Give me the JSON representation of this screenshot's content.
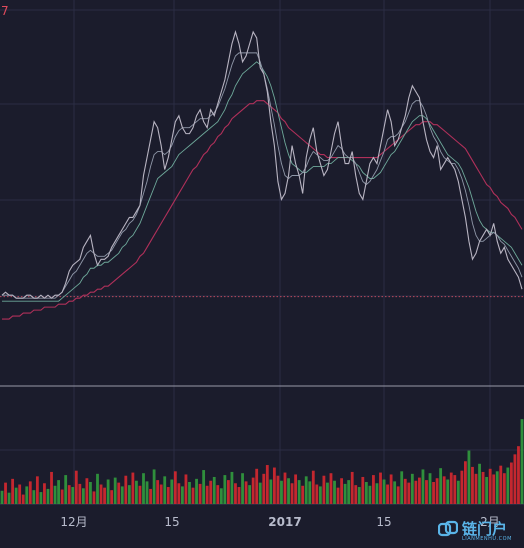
{
  "corner_label": "7",
  "watermark": {
    "cn": "链门户",
    "en": "LIANMENHU.COM"
  },
  "colors": {
    "background": "#1b1c2c",
    "grid": "#2b2d44",
    "price_line": "#b8b4c2",
    "ma_short": "#8f97a8",
    "ma_mid": "#6ea89a",
    "ma_long": "#b0305a",
    "reference_line": "#b8485a",
    "volume_up": "#2f8f3c",
    "volume_down": "#c4272f",
    "axis_text": "#b8bccc",
    "separator": "#9a9aa8"
  },
  "chart_data": {
    "type": "line",
    "title": "",
    "x_ticks": [
      "12月",
      "15",
      "2017",
      "15",
      "2月"
    ],
    "price": [
      74,
      75,
      74,
      74,
      73,
      73,
      73,
      74,
      74,
      73,
      73,
      74,
      73,
      74,
      73,
      74,
      74,
      75,
      78,
      82,
      84,
      85,
      86,
      90,
      92,
      94,
      88,
      84,
      86,
      86,
      87,
      90,
      92,
      94,
      96,
      98,
      100,
      100,
      102,
      104,
      114,
      120,
      126,
      132,
      130,
      124,
      116,
      120,
      126,
      132,
      134,
      130,
      128,
      128,
      130,
      134,
      136,
      132,
      130,
      136,
      134,
      138,
      142,
      146,
      152,
      158,
      162,
      158,
      152,
      154,
      158,
      162,
      160,
      150,
      148,
      142,
      132,
      124,
      112,
      106,
      108,
      114,
      124,
      118,
      114,
      108,
      120,
      126,
      130,
      122,
      118,
      114,
      116,
      122,
      128,
      132,
      124,
      118,
      118,
      122,
      114,
      108,
      106,
      112,
      118,
      120,
      118,
      124,
      130,
      136,
      132,
      124,
      126,
      130,
      134,
      140,
      144,
      142,
      140,
      132,
      126,
      122,
      120,
      124,
      116,
      118,
      120,
      118,
      116,
      112,
      106,
      100,
      92,
      86,
      88,
      92,
      94,
      96,
      94,
      98,
      92,
      88,
      90,
      86,
      84,
      82,
      80,
      76
    ],
    "ma_short": [
      74,
      74,
      74,
      74,
      73,
      73,
      73,
      73,
      73,
      73,
      73,
      73,
      73,
      73,
      73,
      73,
      74,
      75,
      77,
      79,
      81,
      82,
      84,
      86,
      88,
      89,
      88,
      87,
      87,
      87,
      88,
      89,
      91,
      93,
      95,
      96,
      98,
      99,
      101,
      104,
      108,
      112,
      117,
      121,
      122,
      122,
      121,
      122,
      124,
      127,
      129,
      130,
      130,
      130,
      131,
      132,
      133,
      133,
      133,
      134,
      135,
      137,
      140,
      143,
      147,
      151,
      154,
      155,
      155,
      155,
      155,
      155,
      155,
      152,
      148,
      143,
      137,
      131,
      124,
      118,
      114,
      113,
      114,
      114,
      114,
      115,
      117,
      120,
      122,
      121,
      120,
      119,
      119,
      120,
      122,
      124,
      123,
      121,
      120,
      120,
      118,
      115,
      112,
      111,
      112,
      114,
      116,
      119,
      122,
      126,
      127,
      127,
      128,
      130,
      132,
      135,
      138,
      139,
      139,
      137,
      134,
      130,
      127,
      125,
      122,
      120,
      119,
      118,
      118,
      116,
      113,
      109,
      104,
      98,
      94,
      92,
      92,
      93,
      94,
      95,
      94,
      92,
      91,
      89,
      87,
      85,
      83,
      80
    ],
    "ma_mid": [
      72,
      72,
      72,
      72,
      72,
      72,
      72,
      72,
      72,
      72,
      72,
      72,
      72,
      72,
      72,
      72,
      72,
      73,
      74,
      75,
      76,
      77,
      78,
      80,
      81,
      83,
      83,
      84,
      84,
      85,
      85,
      86,
      87,
      88,
      90,
      91,
      93,
      94,
      96,
      98,
      101,
      104,
      107,
      110,
      113,
      114,
      115,
      116,
      117,
      119,
      121,
      122,
      123,
      124,
      125,
      126,
      127,
      128,
      129,
      130,
      131,
      132,
      134,
      136,
      139,
      141,
      144,
      146,
      148,
      149,
      150,
      151,
      152,
      151,
      149,
      147,
      144,
      140,
      135,
      130,
      125,
      121,
      118,
      117,
      116,
      115,
      115,
      116,
      117,
      117,
      117,
      117,
      118,
      118,
      119,
      120,
      120,
      120,
      120,
      119,
      118,
      117,
      115,
      114,
      113,
      113,
      114,
      115,
      117,
      119,
      121,
      122,
      124,
      126,
      128,
      130,
      132,
      133,
      134,
      134,
      133,
      131,
      129,
      127,
      125,
      123,
      121,
      120,
      119,
      118,
      116,
      113,
      110,
      106,
      102,
      99,
      97,
      96,
      95,
      95,
      94,
      93,
      92,
      91,
      90,
      88,
      86,
      84
    ],
    "ma_long": [
      66,
      66,
      66,
      67,
      67,
      67,
      68,
      68,
      68,
      69,
      69,
      69,
      70,
      70,
      70,
      70,
      71,
      71,
      71,
      72,
      72,
      73,
      73,
      74,
      74,
      75,
      75,
      76,
      76,
      77,
      77,
      78,
      79,
      80,
      81,
      82,
      83,
      84,
      85,
      87,
      88,
      90,
      92,
      94,
      96,
      98,
      100,
      102,
      104,
      106,
      108,
      110,
      112,
      114,
      116,
      117,
      119,
      121,
      122,
      124,
      125,
      127,
      128,
      130,
      131,
      133,
      134,
      135,
      136,
      137,
      138,
      138,
      139,
      139,
      139,
      138,
      137,
      136,
      135,
      133,
      132,
      130,
      129,
      128,
      127,
      126,
      125,
      124,
      123,
      122,
      121,
      121,
      120,
      120,
      120,
      120,
      120,
      120,
      120,
      120,
      120,
      120,
      120,
      120,
      120,
      120,
      120,
      121,
      122,
      123,
      124,
      125,
      126,
      127,
      128,
      129,
      130,
      131,
      131,
      132,
      132,
      132,
      131,
      131,
      130,
      129,
      128,
      127,
      126,
      125,
      124,
      123,
      121,
      119,
      117,
      115,
      113,
      111,
      110,
      108,
      107,
      105,
      104,
      103,
      101,
      100,
      98,
      96
    ],
    "reference_level": 73.5,
    "volume": [
      2.1,
      3.4,
      1.8,
      4.0,
      2.6,
      3.1,
      1.5,
      2.8,
      3.6,
      2.2,
      4.4,
      1.9,
      3.3,
      2.4,
      5.1,
      2.9,
      3.8,
      2.3,
      4.6,
      3.0,
      2.7,
      5.3,
      3.2,
      2.5,
      4.1,
      3.5,
      2.0,
      4.8,
      3.1,
      2.6,
      3.9,
      2.2,
      4.2,
      3.4,
      2.8,
      4.5,
      3.0,
      5.0,
      3.7,
      2.9,
      4.9,
      3.6,
      2.4,
      5.5,
      3.8,
      3.1,
      4.4,
      2.7,
      3.9,
      5.2,
      3.3,
      2.8,
      4.7,
      3.5,
      2.6,
      4.0,
      3.2,
      5.4,
      2.9,
      3.7,
      4.3,
      3.0,
      2.5,
      4.6,
      3.8,
      5.1,
      3.3,
      2.7,
      4.9,
      3.6,
      3.0,
      4.2,
      5.6,
      3.4,
      4.8,
      6.2,
      3.9,
      5.8,
      4.5,
      3.7,
      5.0,
      4.1,
      3.3,
      4.7,
      3.8,
      2.9,
      4.4,
      3.6,
      5.3,
      3.1,
      2.8,
      4.5,
      3.4,
      4.9,
      3.7,
      2.6,
      4.1,
      3.2,
      3.8,
      5.1,
      3.0,
      2.7,
      4.3,
      3.5,
      2.9,
      4.6,
      3.3,
      5.0,
      3.9,
      3.1,
      4.7,
      3.6,
      2.8,
      5.2,
      4.0,
      3.4,
      4.8,
      3.7,
      4.2,
      5.5,
      3.8,
      4.9,
      3.5,
      4.1,
      5.7,
      4.4,
      3.9,
      5.0,
      4.6,
      3.7,
      5.3,
      6.8,
      8.5,
      5.9,
      4.8,
      6.4,
      5.1,
      4.3,
      5.6,
      4.7,
      5.2,
      6.1,
      4.9,
      5.8,
      6.6,
      7.9,
      9.2,
      13.5
    ],
    "volume_up": [
      1,
      0,
      1,
      0,
      1,
      0,
      0,
      1,
      0,
      1,
      0,
      1,
      0,
      1,
      0,
      1,
      1,
      0,
      1,
      0,
      1,
      0,
      0,
      1,
      0,
      1,
      0,
      1,
      0,
      0,
      1,
      0,
      1,
      0,
      1,
      0,
      1,
      0,
      1,
      0,
      1,
      1,
      0,
      1,
      0,
      0,
      1,
      0,
      1,
      0,
      0,
      1,
      0,
      1,
      0,
      1,
      0,
      1,
      0,
      0,
      1,
      0,
      1,
      1,
      0,
      1,
      0,
      0,
      1,
      0,
      1,
      0,
      0,
      1,
      0,
      0,
      1,
      0,
      0,
      1,
      0,
      1,
      0,
      0,
      1,
      0,
      1,
      1,
      0,
      0,
      1,
      0,
      1,
      0,
      1,
      0,
      0,
      1,
      1,
      0,
      0,
      1,
      0,
      1,
      1,
      0,
      1,
      0,
      1,
      0,
      0,
      1,
      0,
      1,
      0,
      0,
      1,
      0,
      0,
      1,
      0,
      1,
      0,
      0,
      1,
      0,
      1,
      0,
      0,
      1,
      0,
      0,
      1,
      0,
      0,
      1,
      0,
      1,
      0,
      0,
      1,
      0,
      0,
      1,
      0,
      0,
      0,
      1
    ],
    "price_range": [
      55,
      170
    ],
    "volume_range": [
      0,
      14
    ],
    "grid": true
  }
}
